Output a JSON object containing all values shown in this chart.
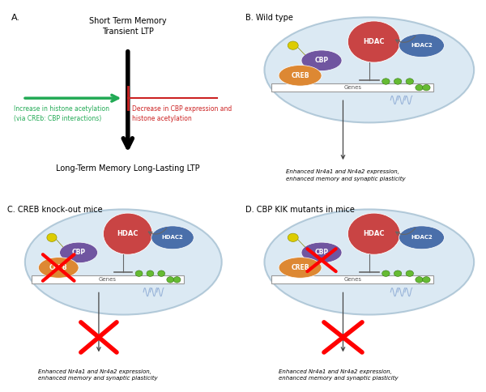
{
  "panel_A": {
    "label": "A.",
    "top_text": "Short Term Memory\nTransient LTP",
    "bottom_text": "Long-Term Memory Long-Lasting LTP",
    "green_arrow_text": "Increase in histone acetylation\n(via CREb: CBP interactions)",
    "red_arrow_text": "Decrease in CBP expression and\nhistone acetylation"
  },
  "panel_B": {
    "label": "B. Wild type",
    "output_text": "Enhanced Nr4a1 and Nr4a2 expression,\nenhanced memory and synaptic plasticity"
  },
  "panel_C": {
    "label": "C. CREB knock-out mice",
    "output_text": "Enhanced Nr4a1 and Nr4a2 expression,\nenhanced memory and synaptic plasticity"
  },
  "panel_D": {
    "label": "D. CBP KIK mutants in mice",
    "output_text": "Enhanced Nr4a1 and Nr4a2 expression,\nenhanced memory and synaptic plasticity"
  },
  "colors": {
    "background": "#ffffff",
    "cell_bg": "#cce0ee",
    "cell_edge": "#9ab8cc",
    "HDAC_red": "#c94444",
    "HDAC_blue": "#4a6faa",
    "CBP_purple": "#7055a0",
    "CREB_orange": "#dd8833",
    "acetyl_yellow": "#ddcc00",
    "arrow_green": "#22aa55",
    "arrow_red": "#cc2222",
    "text_red": "#cc2222",
    "text_green": "#22aa55",
    "wave_blue": "#7799cc",
    "dot_green": "#66bb33",
    "inhibit_line": "#666666"
  }
}
